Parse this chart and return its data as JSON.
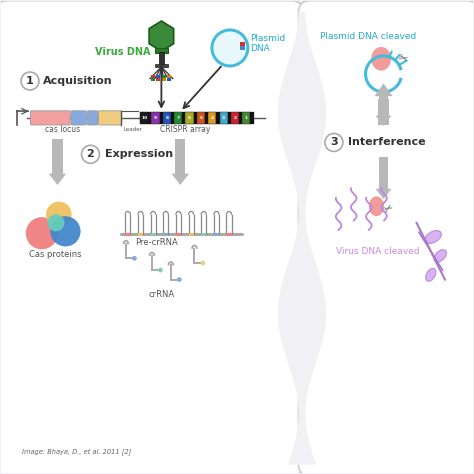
{
  "bg_color": "#f0f0f5",
  "panel_left_bg": "#f5f5fa",
  "panel_right_bg": "#f8f8fc",
  "fig_width": 4.74,
  "fig_height": 4.74,
  "citation": "Image: Bhaya, D., et al. 2011 [2]",
  "labels": {
    "virus_dna": "Virus DNA",
    "plasmid_dna": "Plasmid\nDNA",
    "acquisition": "Acquisition",
    "cas_locus": "cas locus",
    "crispr_array": "CRISPR array",
    "leader": "Leader",
    "expression": "Expression",
    "cas_proteins": "Cas proteins",
    "pre_crRNA": "Pre-crRNA",
    "crRNA": "crRNA",
    "interference": "Interference",
    "plasmid_cleaved": "Plasmid DNA cleaved",
    "virus_cleaved": "Virus DNA cleaved"
  },
  "colors": {
    "virus_dna_text": "#3aaa3a",
    "plasmid_dna_text": "#22aacc",
    "step_text": "#333333",
    "arrow_gray": "#aaaaaa",
    "cas_pink": "#f08080",
    "cas_yellow": "#f0c060",
    "cas_blue": "#4488cc",
    "cas_teal": "#66ccbb",
    "genomic_pink": "#f4a0a0",
    "genomic_blue": "#88aadd",
    "genomic_yellow": "#f0cc80",
    "plasmid_ring": "#44bbdd",
    "virus_cleaved_text": "#cc88dd",
    "plasmid_cleaved_text": "#22aacc",
    "wave_color": "#ffffff",
    "phage_green": "#3a8a3a",
    "phage_dark": "#1a5a1a"
  },
  "array_colors": [
    "#1a1a1a",
    "#8833aa",
    "#2255bb",
    "#228833",
    "#aaaa22",
    "#cc5522",
    "#dd9922",
    "#44aacc",
    "#cc2233",
    "#448833"
  ],
  "array_numbers": [
    10,
    9,
    8,
    7,
    6,
    5,
    4,
    3,
    2,
    1
  ]
}
